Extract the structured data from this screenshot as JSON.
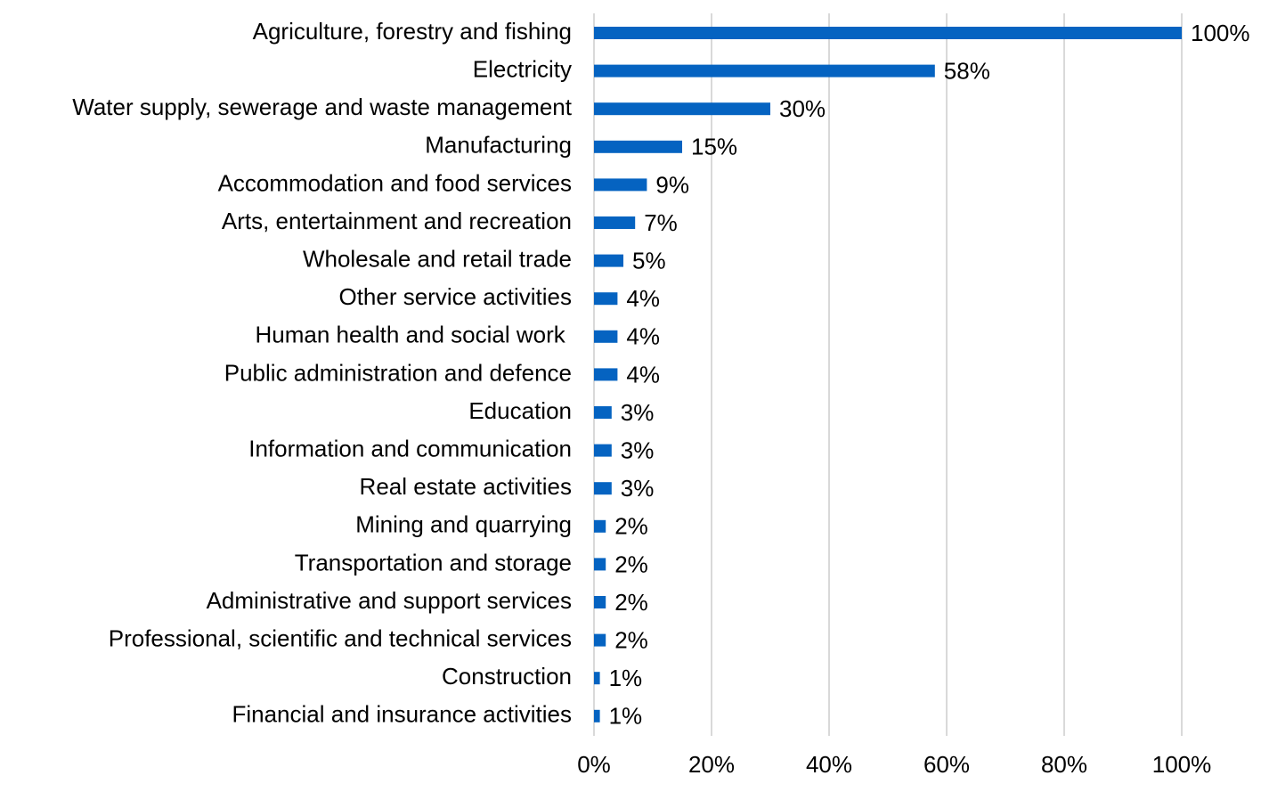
{
  "chart_data": {
    "type": "hbar",
    "categories": [
      "Agriculture, forestry and fishing",
      "Electricity",
      "Water supply, sewerage and waste management",
      "Manufacturing",
      "Accommodation and food services",
      "Arts, entertainment and recreation",
      "Wholesale and retail trade",
      "Other service activities",
      "Human health and social work ",
      "Public administration and defence",
      "Education",
      "Information and communication",
      "Real estate activities",
      "Mining and quarrying",
      "Transportation and storage",
      "Administrative and support services",
      "Professional, scientific and technical services",
      "Construction",
      "Financial and insurance activities"
    ],
    "values": [
      100,
      58,
      30,
      15,
      9,
      7,
      5,
      4,
      4,
      4,
      3,
      3,
      3,
      2,
      2,
      2,
      2,
      1,
      1
    ],
    "value_labels": [
      "100%",
      "58%",
      "30%",
      "15%",
      "9%",
      "7%",
      "5%",
      "4%",
      "4%",
      "4%",
      "3%",
      "3%",
      "3%",
      "2%",
      "2%",
      "2%",
      "2%",
      "1%",
      "1%"
    ],
    "color": "#0563c1",
    "xlim": [
      0,
      100
    ],
    "xticks": [
      {
        "value": 0,
        "label": "0%"
      },
      {
        "value": 20,
        "label": "20%"
      },
      {
        "value": 40,
        "label": "40%"
      },
      {
        "value": 60,
        "label": "60%"
      },
      {
        "value": 80,
        "label": "80%"
      },
      {
        "value": 100,
        "label": "100%"
      }
    ],
    "grid": true
  }
}
